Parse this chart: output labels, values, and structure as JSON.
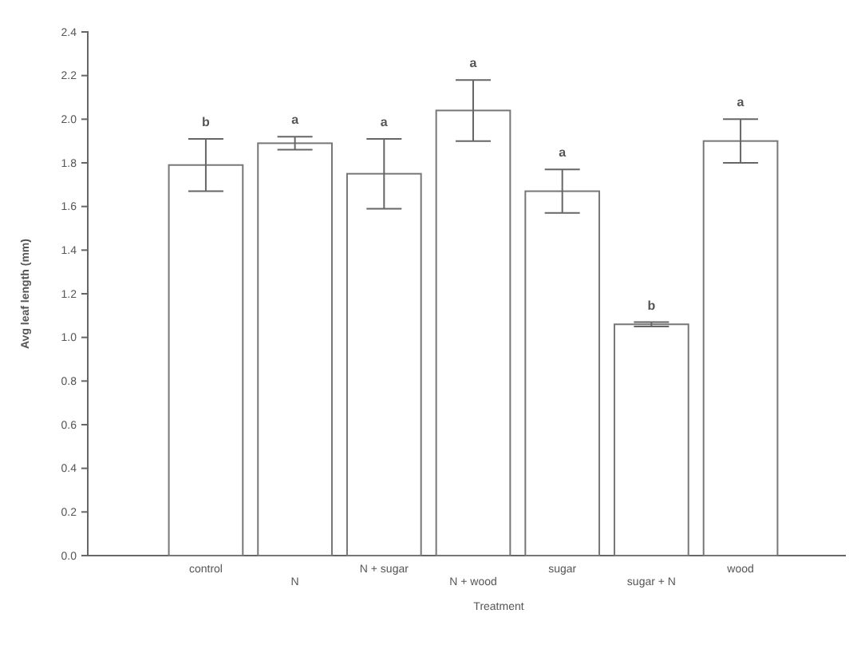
{
  "chart_data": {
    "type": "bar",
    "xlabel": "Treatment",
    "ylabel": "Avg leaf length (mm)",
    "categories": [
      "control",
      "N",
      "N + sugar",
      "N + wood",
      "sugar",
      "sugar + N",
      "wood"
    ],
    "values": [
      1.79,
      1.89,
      1.75,
      2.04,
      1.67,
      1.06,
      1.9
    ],
    "errors": [
      0.12,
      0.03,
      0.16,
      0.14,
      0.1,
      0.01,
      0.1
    ],
    "color": "#ffffff",
    "ylim": [
      0,
      2.4
    ],
    "yticks": [
      {
        "value": 0,
        "label": "0.0"
      },
      0.2,
      0.4,
      0.6,
      0.8,
      {
        "value": 1,
        "label": "1.0"
      },
      1.2,
      1.4,
      1.6,
      1.8,
      {
        "value": 2,
        "label": "2.0"
      },
      2.2,
      2.4
    ],
    "grid": false,
    "annotations": [
      "b",
      "a",
      "a",
      "a",
      "a",
      "b",
      "a"
    ]
  }
}
